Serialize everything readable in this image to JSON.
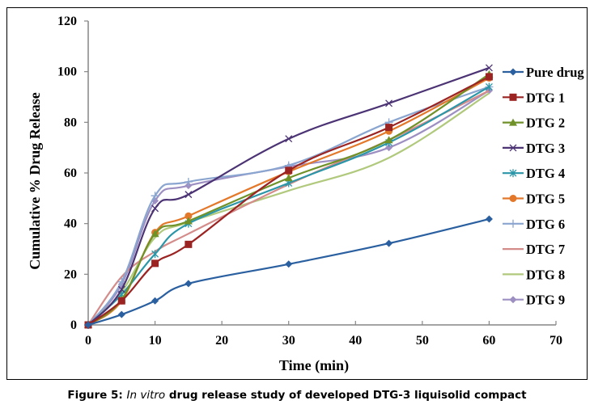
{
  "chart_data": {
    "type": "line",
    "title": "",
    "xlabel": "Time (min)",
    "ylabel": "Cumulative % Drug Release",
    "xlim": [
      0,
      70
    ],
    "ylim": [
      0,
      120
    ],
    "xticks": [
      0,
      10,
      20,
      30,
      40,
      50,
      60,
      70
    ],
    "yticks": [
      0,
      20,
      40,
      60,
      80,
      100,
      120
    ],
    "grid": false,
    "legend_position": "right",
    "x": [
      0,
      5,
      10,
      15,
      30,
      45,
      60
    ],
    "series": [
      {
        "name": "Pure drug",
        "color": "#2a5fa0",
        "marker": "diamond",
        "values": [
          0,
          4.1,
          9.5,
          16.3,
          24,
          32.2,
          41.8
        ]
      },
      {
        "name": "DTG 1",
        "color": "#9b2423",
        "marker": "square",
        "values": [
          0,
          9.5,
          24.3,
          31.8,
          61,
          78,
          98
        ]
      },
      {
        "name": "DTG 2",
        "color": "#6f9128",
        "marker": "triangle",
        "values": [
          0,
          10,
          36,
          41,
          58,
          73,
          99
        ]
      },
      {
        "name": "DTG 3",
        "color": "#4b3374",
        "marker": "x",
        "values": [
          0,
          14,
          46,
          51.5,
          73.5,
          87.5,
          101.5
        ]
      },
      {
        "name": "DTG 4",
        "color": "#2a96a8",
        "marker": "star",
        "values": [
          0,
          12,
          28,
          40,
          56,
          72,
          94
        ]
      },
      {
        "name": "DTG 5",
        "color": "#e4782a",
        "marker": "circle",
        "values": [
          0,
          9.5,
          36.5,
          43,
          60.5,
          76.5,
          97.5
        ]
      },
      {
        "name": "DTG 6",
        "color": "#8aa5cf",
        "marker": "plus",
        "values": [
          0,
          17,
          51,
          56.5,
          63,
          80,
          94
        ]
      },
      {
        "name": "DTG 7",
        "color": "#d48c8a",
        "marker": "none",
        "values": [
          0,
          19,
          29,
          36,
          55.5,
          73,
          92.5
        ]
      },
      {
        "name": "DTG 8",
        "color": "#b0c97c",
        "marker": "none",
        "values": [
          0,
          13,
          34.5,
          40.5,
          53,
          66,
          91.5
        ]
      },
      {
        "name": "DTG 9",
        "color": "#9d8fc2",
        "marker": "diamond",
        "values": [
          0,
          16,
          49,
          55,
          62.5,
          70,
          92.5
        ]
      }
    ]
  },
  "caption": {
    "prefix": "Figure 5: ",
    "italic": "In vitro",
    "suffix": " drug release study of developed DTG-3 liquisolid compact"
  }
}
